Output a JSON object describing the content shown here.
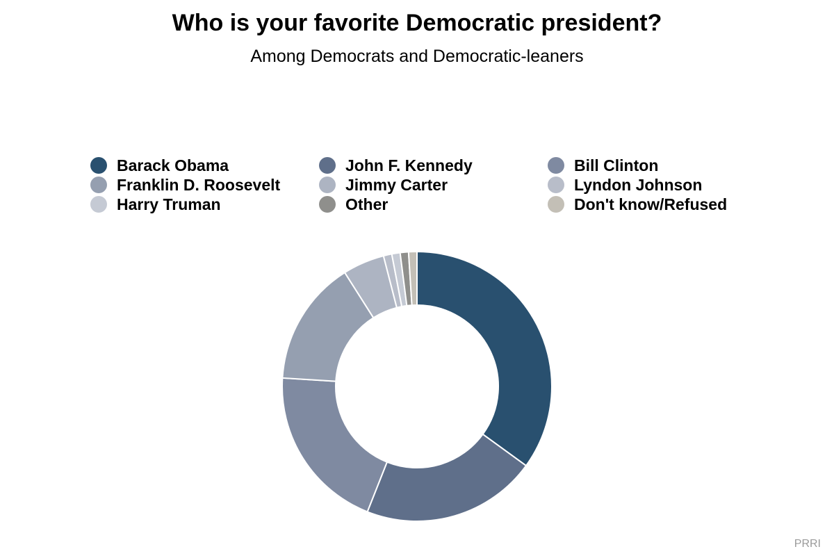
{
  "chart_data": {
    "type": "pie",
    "donut": true,
    "title": "Who is your favorite Democratic president?",
    "subtitle": "Among Democrats and Democratic-leaners",
    "categories": [
      "Barack Obama",
      "John F. Kennedy",
      "Bill Clinton",
      "Franklin D. Roosevelt",
      "Jimmy Carter",
      "Lyndon Johnson",
      "Harry Truman",
      "Other",
      "Don't know/Refused"
    ],
    "values": [
      35,
      21,
      20,
      15,
      5,
      1,
      1,
      1,
      1
    ],
    "colors": [
      "#29506f",
      "#5f6f8a",
      "#7f8aa1",
      "#959fb0",
      "#adb4c2",
      "#b8bdc9",
      "#c5cad4",
      "#8f8f8c",
      "#c3bfb6"
    ],
    "legend_position": "top",
    "source": "PRRI"
  }
}
